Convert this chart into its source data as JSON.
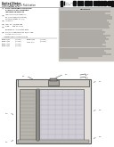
{
  "page_bg": "#f5f4f1",
  "white": "#ffffff",
  "barcode_color": "#111111",
  "text_dark": "#222222",
  "text_mid": "#444444",
  "text_light": "#666666",
  "line_color": "#888888",
  "diagram_bg": "#f0eeea",
  "device_outer": "#c8c5be",
  "device_inner_bg": "#e0ddd6",
  "device_dark": "#a0a09a",
  "device_medium": "#b8b5ae",
  "device_light": "#d4d1ca",
  "left_chamber_bg": "#c0bdb6",
  "right_chamber_bg": "#d8d5ce",
  "hline_color": "#999690",
  "abstract_bg": "#c8c5be",
  "header_sep": "#999999"
}
